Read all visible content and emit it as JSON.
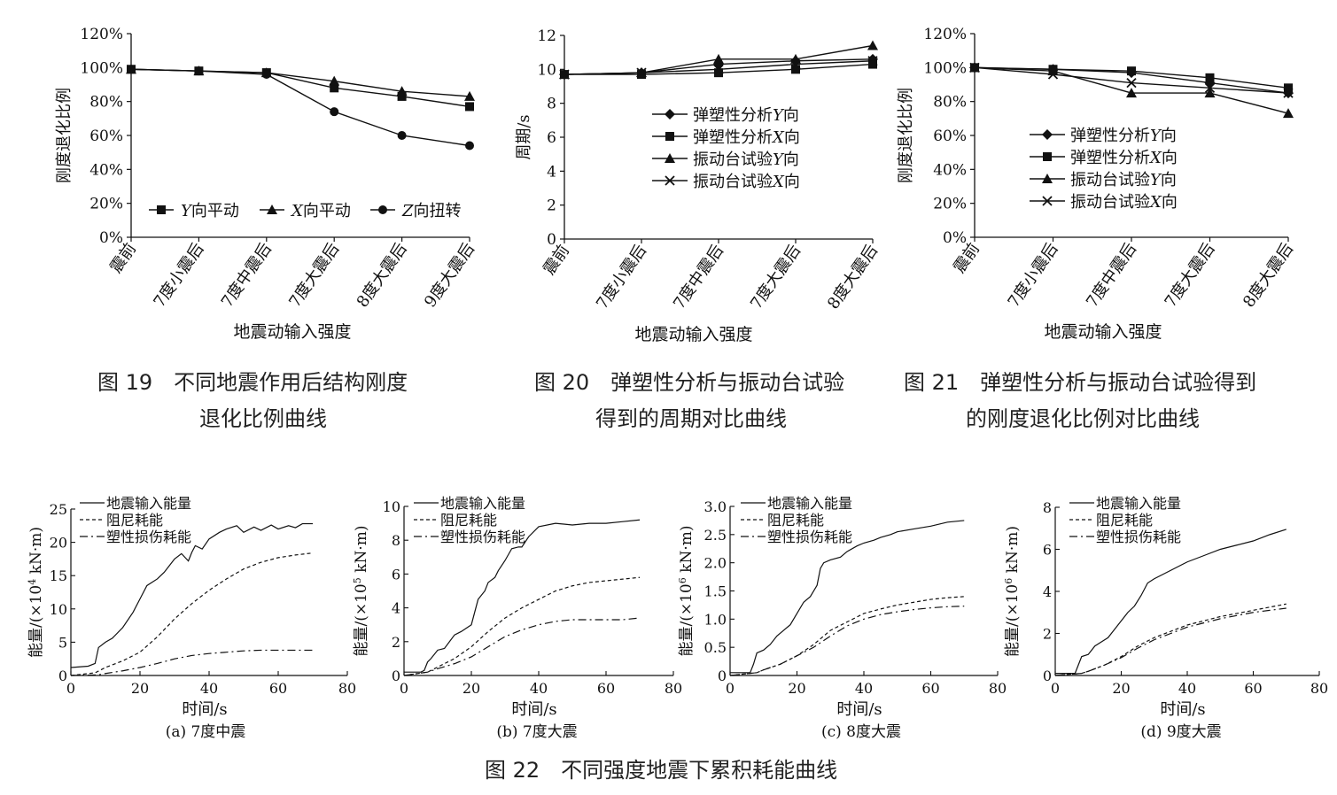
{
  "figures": [
    {
      "id": "fig19",
      "caption_line1": "图 19　不同地震作用后结构刚度",
      "caption_line2": "退化比例曲线"
    },
    {
      "id": "fig20",
      "caption_line1": "图 20　弹塑性分析与振动台试验",
      "caption_line2": "得到的周期对比曲线"
    },
    {
      "id": "fig21",
      "caption_line1": "图 21　弹塑性分析与振动台试验得到",
      "caption_line2": "的刚度退化比例对比曲线"
    },
    {
      "id": "fig22",
      "caption_line1": "图 22　不同强度地震下累积耗能曲线"
    }
  ],
  "chart_data": [
    {
      "id": "fig19",
      "type": "line",
      "xlabel": "地震动输入强度",
      "ylabel": "刚度退化比例",
      "categories": [
        "震前",
        "7度小震后",
        "7度中震后",
        "7度大震后",
        "8度大震后",
        "9度大震后"
      ],
      "yticks": [
        "0%",
        "20%",
        "40%",
        "60%",
        "80%",
        "100%",
        "120%"
      ],
      "ylim": [
        0,
        120
      ],
      "series": [
        {
          "name": "Y向平动",
          "marker": "square",
          "values": [
            99,
            98,
            97,
            88,
            83,
            77
          ]
        },
        {
          "name": "X向平动",
          "marker": "triangle",
          "values": [
            99,
            98,
            97,
            92,
            86,
            83
          ]
        },
        {
          "name": "Z向扭转",
          "marker": "circle",
          "values": [
            99,
            98,
            96,
            74,
            60,
            54
          ]
        }
      ],
      "legend": [
        {
          "italic": "Y",
          "rest": "向平动"
        },
        {
          "italic": "X",
          "rest": "向平动"
        },
        {
          "italic": "Z",
          "rest": "向扭转"
        }
      ]
    },
    {
      "id": "fig20",
      "type": "line",
      "xlabel": "地震动输入强度",
      "ylabel": "周期/s",
      "categories": [
        "震前",
        "7度小震后",
        "7度中震后",
        "7度大震后",
        "8度大震后"
      ],
      "yticks": [
        "0",
        "2",
        "4",
        "6",
        "8",
        "10",
        "12"
      ],
      "ylim": [
        0,
        12
      ],
      "series": [
        {
          "name": "弹塑性分析Y向",
          "marker": "diamond",
          "values": [
            9.7,
            9.8,
            10.3,
            10.5,
            10.6
          ]
        },
        {
          "name": "弹塑性分析X向",
          "marker": "square",
          "values": [
            9.7,
            9.7,
            9.8,
            10.0,
            10.3
          ]
        },
        {
          "name": "振动台试验Y向",
          "marker": "triangle",
          "values": [
            9.7,
            9.8,
            10.6,
            10.6,
            11.4
          ]
        },
        {
          "name": "振动台试验X向",
          "marker": "cross",
          "values": [
            9.7,
            9.8,
            10.0,
            10.3,
            10.5
          ]
        }
      ],
      "legend": [
        {
          "plain": "弹塑性分析",
          "italic": "Y",
          "rest": "向"
        },
        {
          "plain": "弹塑性分析",
          "italic": "X",
          "rest": "向"
        },
        {
          "plain": "振动台试验",
          "italic": "Y",
          "rest": "向"
        },
        {
          "plain": "振动台试验",
          "italic": "X",
          "rest": "向"
        }
      ]
    },
    {
      "id": "fig21",
      "type": "line",
      "xlabel": "地震动输入强度",
      "ylabel": "刚度退化比例",
      "categories": [
        "震前",
        "7度小震后",
        "7度中震后",
        "7度大震后",
        "8度大震后"
      ],
      "yticks": [
        "0%",
        "20%",
        "40%",
        "60%",
        "80%",
        "100%",
        "120%"
      ],
      "ylim": [
        0,
        120
      ],
      "series": [
        {
          "name": "弹塑性分析Y向",
          "marker": "diamond",
          "values": [
            100,
            99,
            97,
            91,
            85
          ]
        },
        {
          "name": "弹塑性分析X向",
          "marker": "square",
          "values": [
            100,
            99,
            98,
            94,
            88
          ]
        },
        {
          "name": "振动台试验Y向",
          "marker": "triangle",
          "values": [
            100,
            98,
            85,
            85,
            73
          ]
        },
        {
          "name": "振动台试验X向",
          "marker": "cross",
          "values": [
            100,
            96,
            91,
            88,
            85
          ]
        }
      ],
      "legend": [
        {
          "plain": "弹塑性分析",
          "italic": "Y",
          "rest": "向"
        },
        {
          "plain": "弹塑性分析",
          "italic": "X",
          "rest": "向"
        },
        {
          "plain": "振动台试验",
          "italic": "Y",
          "rest": "向"
        },
        {
          "plain": "振动台试验",
          "italic": "X",
          "rest": "向"
        }
      ]
    },
    {
      "id": "fig22a",
      "type": "line",
      "subcaption": "(a) 7度中震",
      "xlabel": "时间/s",
      "ylabel_prefix": "能量/(×10",
      "ylabel_exp": "4",
      "ylabel_suffix": " kN·m)",
      "xlim": [
        0,
        80
      ],
      "ylim": [
        0,
        25
      ],
      "xticks": [
        0,
        20,
        40,
        60,
        80
      ],
      "yticks": [
        0,
        5,
        10,
        15,
        20,
        25
      ],
      "ytick_labels": [
        "0",
        "5",
        "10",
        "15",
        "20",
        "25"
      ],
      "series": [
        {
          "name": "地震输入能量",
          "style": "solid",
          "x": [
            0,
            5,
            7,
            8,
            10,
            12,
            15,
            18,
            20,
            22,
            25,
            27,
            30,
            32,
            34,
            35,
            36,
            38,
            40,
            43,
            45,
            48,
            50,
            53,
            55,
            58,
            60,
            63,
            65,
            67,
            70
          ],
          "y": [
            1.2,
            1.4,
            1.8,
            4.2,
            5.0,
            5.6,
            7.2,
            9.5,
            11.5,
            13.5,
            14.5,
            15.5,
            17.5,
            18.3,
            17.2,
            18.5,
            19.5,
            19.0,
            20.5,
            21.5,
            22.0,
            22.5,
            21.5,
            22.3,
            21.8,
            22.6,
            22.0,
            22.5,
            22.2,
            22.8,
            22.8
          ]
        },
        {
          "name": "阻尼耗能",
          "style": "dash",
          "x": [
            0,
            7,
            10,
            15,
            20,
            25,
            30,
            35,
            40,
            45,
            50,
            55,
            60,
            65,
            70
          ],
          "y": [
            0,
            0.4,
            1.2,
            2.2,
            3.5,
            5.8,
            8.5,
            10.8,
            12.8,
            14.5,
            16.0,
            17.0,
            17.7,
            18.1,
            18.4
          ]
        },
        {
          "name": "塑性损伤耗能",
          "style": "dashdot",
          "x": [
            0,
            8,
            10,
            15,
            20,
            25,
            30,
            35,
            40,
            45,
            50,
            55,
            60,
            65,
            70
          ],
          "y": [
            0,
            0.1,
            0.3,
            0.7,
            1.2,
            1.8,
            2.5,
            3.0,
            3.3,
            3.5,
            3.7,
            3.8,
            3.8,
            3.8,
            3.8
          ]
        }
      ]
    },
    {
      "id": "fig22b",
      "type": "line",
      "subcaption": "(b) 7度大震",
      "xlabel": "时间/s",
      "ylabel_prefix": "能量/(×10",
      "ylabel_exp": "5",
      "ylabel_suffix": " kN·m)",
      "xlim": [
        0,
        80
      ],
      "ylim": [
        0,
        10
      ],
      "xticks": [
        0,
        20,
        40,
        60,
        80
      ],
      "yticks": [
        0,
        2,
        4,
        6,
        8,
        10
      ],
      "ytick_labels": [
        "0",
        "2",
        "4",
        "6",
        "8",
        "10"
      ],
      "series": [
        {
          "name": "地震输入能量",
          "style": "solid",
          "x": [
            0,
            5,
            6,
            7,
            8,
            10,
            12,
            15,
            17,
            20,
            22,
            24,
            25,
            27,
            28,
            30,
            32,
            34,
            35,
            37,
            40,
            45,
            50,
            55,
            60,
            65,
            70
          ],
          "y": [
            0.2,
            0.2,
            0.3,
            0.8,
            1.0,
            1.5,
            1.6,
            2.4,
            2.6,
            3.0,
            4.5,
            5.0,
            5.5,
            5.8,
            6.2,
            6.8,
            7.5,
            7.6,
            7.6,
            8.2,
            8.8,
            9.0,
            8.9,
            9.0,
            9.0,
            9.1,
            9.2
          ]
        },
        {
          "name": "阻尼耗能",
          "style": "dash",
          "x": [
            0,
            7,
            10,
            15,
            20,
            25,
            30,
            35,
            40,
            45,
            50,
            55,
            60,
            65,
            70
          ],
          "y": [
            0,
            0.2,
            0.5,
            1.0,
            1.7,
            2.6,
            3.4,
            4.0,
            4.5,
            5.0,
            5.3,
            5.5,
            5.6,
            5.7,
            5.8
          ]
        },
        {
          "name": "塑性损伤耗能",
          "style": "dashdot",
          "x": [
            0,
            7,
            10,
            15,
            20,
            25,
            30,
            35,
            40,
            45,
            50,
            55,
            60,
            65,
            70
          ],
          "y": [
            0,
            0.2,
            0.4,
            0.7,
            1.1,
            1.7,
            2.3,
            2.7,
            3.0,
            3.2,
            3.3,
            3.3,
            3.3,
            3.3,
            3.4
          ]
        }
      ]
    },
    {
      "id": "fig22c",
      "type": "line",
      "subcaption": "(c) 8度大震",
      "xlabel": "时间/s",
      "ylabel_prefix": "能量/(×10",
      "ylabel_exp": "6",
      "ylabel_suffix": " kN·m)",
      "xlim": [
        0,
        80
      ],
      "ylim": [
        0,
        3.0
      ],
      "xticks": [
        0,
        20,
        40,
        60,
        80
      ],
      "yticks": [
        0,
        0.5,
        1.0,
        1.5,
        2.0,
        2.5,
        3.0
      ],
      "ytick_labels": [
        "0",
        "0.5",
        "1.0",
        "1.5",
        "2.0",
        "2.5",
        "3.0"
      ],
      "series": [
        {
          "name": "地震输入能量",
          "style": "solid",
          "x": [
            0,
            6,
            7,
            8,
            10,
            12,
            14,
            16,
            18,
            20,
            22,
            24,
            26,
            27,
            28,
            30,
            33,
            35,
            38,
            40,
            43,
            45,
            48,
            50,
            55,
            60,
            65,
            70
          ],
          "y": [
            0.05,
            0.05,
            0.2,
            0.4,
            0.45,
            0.55,
            0.7,
            0.8,
            0.9,
            1.1,
            1.3,
            1.4,
            1.6,
            1.9,
            2.0,
            2.05,
            2.1,
            2.2,
            2.3,
            2.35,
            2.4,
            2.45,
            2.5,
            2.55,
            2.6,
            2.65,
            2.72,
            2.75
          ]
        },
        {
          "name": "阻尼耗能",
          "style": "dash",
          "x": [
            0,
            8,
            10,
            15,
            20,
            25,
            30,
            35,
            40,
            45,
            50,
            55,
            60,
            65,
            70
          ],
          "y": [
            0,
            0.05,
            0.1,
            0.2,
            0.35,
            0.55,
            0.8,
            0.95,
            1.1,
            1.18,
            1.25,
            1.3,
            1.35,
            1.38,
            1.4
          ]
        },
        {
          "name": "塑性损伤耗能",
          "style": "dashdot",
          "x": [
            0,
            8,
            10,
            15,
            20,
            25,
            30,
            35,
            40,
            45,
            50,
            55,
            60,
            65,
            70
          ],
          "y": [
            0,
            0.05,
            0.1,
            0.2,
            0.35,
            0.5,
            0.7,
            0.88,
            1.0,
            1.08,
            1.13,
            1.17,
            1.2,
            1.22,
            1.23
          ]
        }
      ]
    },
    {
      "id": "fig22d",
      "type": "line",
      "subcaption": "(d) 9度大震",
      "xlabel": "时间/s",
      "ylabel_prefix": "能量/(×10",
      "ylabel_exp": "6",
      "ylabel_suffix": " kN·m)",
      "xlim": [
        0,
        80
      ],
      "ylim": [
        0,
        8
      ],
      "xticks": [
        0,
        20,
        40,
        60,
        80
      ],
      "yticks": [
        0,
        2,
        4,
        6,
        8
      ],
      "ytick_labels": [
        "0",
        "2",
        "4",
        "6",
        "8"
      ],
      "series": [
        {
          "name": "地震输入能量",
          "style": "solid",
          "x": [
            0,
            6,
            7,
            8,
            10,
            12,
            14,
            16,
            18,
            20,
            22,
            24,
            26,
            28,
            30,
            35,
            40,
            45,
            50,
            55,
            60,
            65,
            70
          ],
          "y": [
            0.1,
            0.1,
            0.5,
            0.9,
            1.0,
            1.4,
            1.6,
            1.8,
            2.2,
            2.6,
            3.0,
            3.3,
            3.8,
            4.4,
            4.6,
            5.0,
            5.4,
            5.7,
            6.0,
            6.2,
            6.4,
            6.7,
            6.95
          ]
        },
        {
          "name": "阻尼耗能",
          "style": "dash",
          "x": [
            0,
            8,
            10,
            15,
            20,
            25,
            30,
            35,
            40,
            45,
            50,
            55,
            60,
            65,
            70
          ],
          "y": [
            0,
            0.1,
            0.2,
            0.5,
            0.9,
            1.4,
            1.8,
            2.1,
            2.4,
            2.6,
            2.8,
            2.95,
            3.1,
            3.25,
            3.4
          ]
        },
        {
          "name": "塑性损伤耗能",
          "style": "dashdot",
          "x": [
            0,
            8,
            10,
            15,
            20,
            25,
            30,
            35,
            40,
            45,
            50,
            55,
            60,
            65,
            70
          ],
          "y": [
            0,
            0.1,
            0.2,
            0.5,
            0.85,
            1.3,
            1.7,
            2.0,
            2.3,
            2.5,
            2.7,
            2.85,
            3.0,
            3.1,
            3.2
          ]
        }
      ]
    }
  ]
}
